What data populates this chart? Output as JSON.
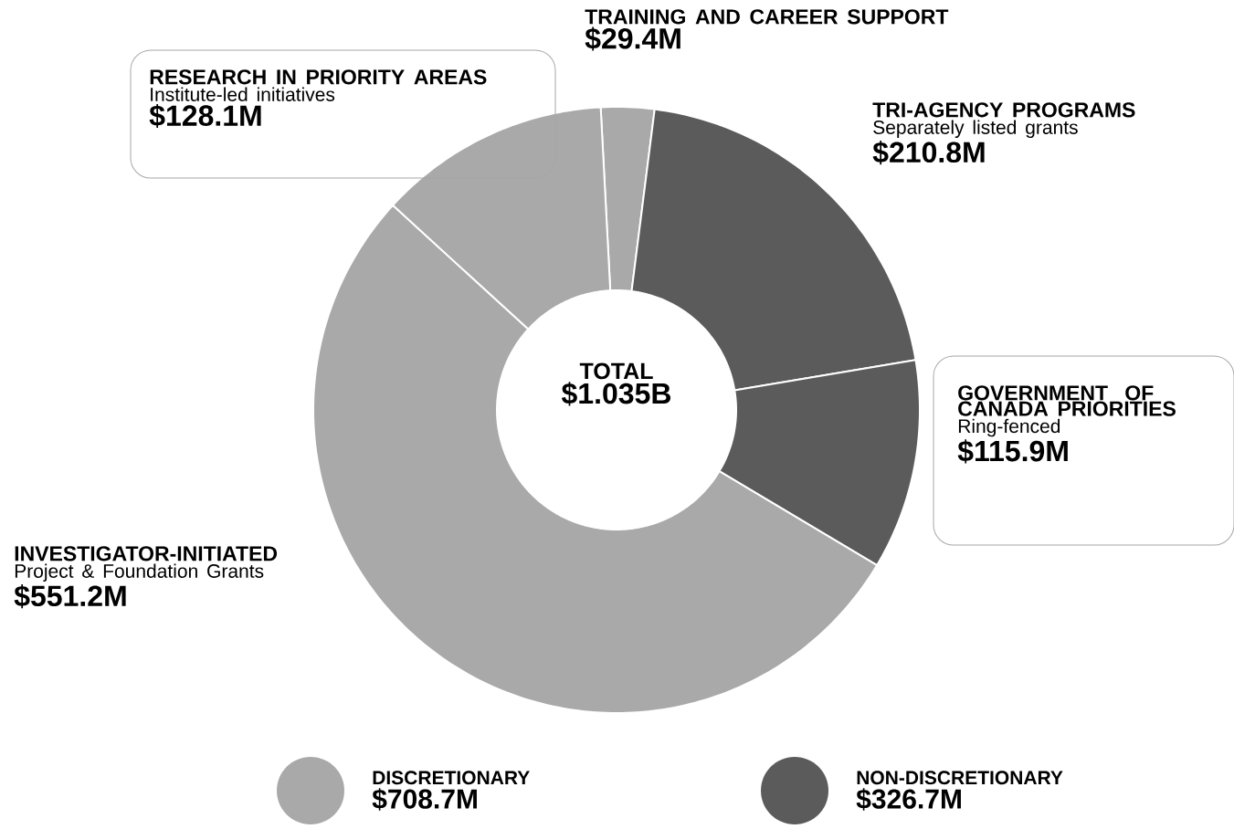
{
  "chart_data": {
    "type": "donut",
    "categories": [
      "TRAINING AND CAREER SUPPORT",
      "TRI-AGENCY PROGRAMS",
      "GOVERNMENT OF CANADA PRIORITIES",
      "INVESTIGATOR-INITIATED",
      "RESEARCH IN PRIORITY AREAS"
    ],
    "values": [
      29.4,
      210.8,
      115.9,
      551.2,
      128.1
    ],
    "value_labels": [
      "$29.4M",
      "$210.8M",
      "$115.9M",
      "$551.2M",
      "$128.1M"
    ],
    "colors": [
      "#a9a9a9",
      "#5b5b5b",
      "#5b5b5b",
      "#a9a9a9",
      "#a9a9a9"
    ],
    "annotations": [
      "TOTAL",
      "$1.035B",
      "Separately listed grants",
      "Ring-fenced",
      "Project & Foundation Grants",
      "Institute-led initiatives",
      "DISCRETIONARY",
      "$708.7M",
      "NON-DISCRETIONARY",
      "$326.7M"
    ]
  }
}
